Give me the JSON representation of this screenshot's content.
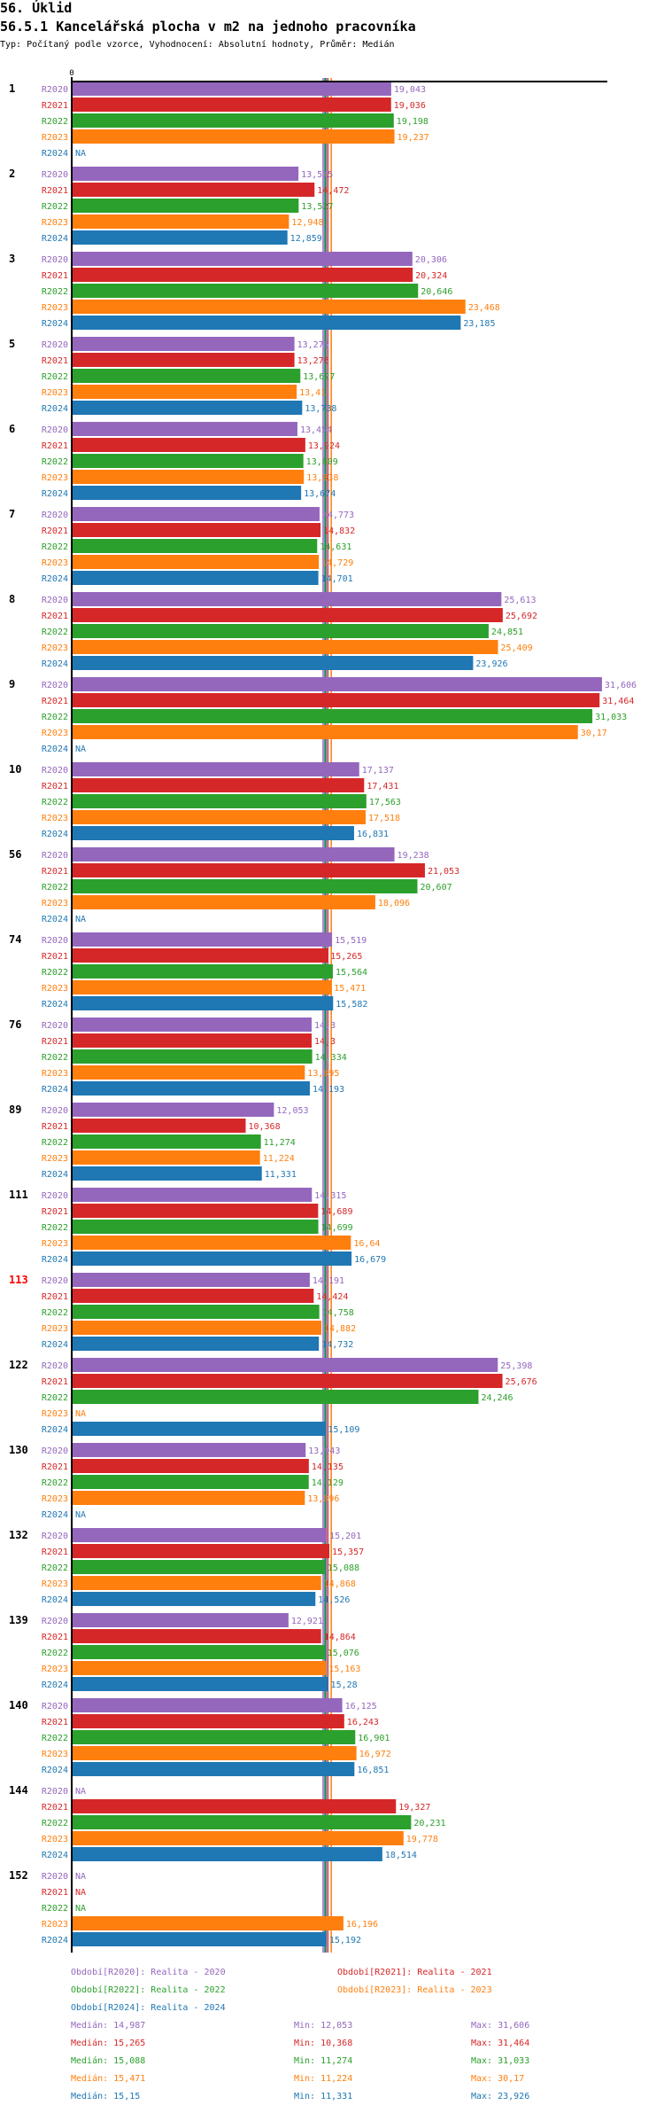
{
  "header": {
    "section": "56. Úklid",
    "title": "56.5.1 Kancelářská plocha v m2 na jednoho pracovníka",
    "subtitle": "Typ: Počítaný podle vzorce, Vyhodnocení: Absolutní hodnoty, Průměr: Medián"
  },
  "chart_data": {
    "type": "bar",
    "orientation": "horizontal",
    "title": "56.5.1 Kancelářská plocha v m2 na jednoho pracovníka",
    "xlabel": "",
    "ylabel": "",
    "x_tick_labels": [
      "0"
    ],
    "xlim": [
      0,
      32
    ],
    "grid": false,
    "decimal_separator": ",",
    "na_label": "NA",
    "series": [
      {
        "name": "R2020",
        "color": "#9467bd",
        "legend": "Období[R2020]: Realita - 2020"
      },
      {
        "name": "R2021",
        "color": "#d62728",
        "legend": "Období[R2021]: Realita - 2021"
      },
      {
        "name": "R2022",
        "color": "#2ca02c",
        "legend": "Období[R2022]: Realita - 2022"
      },
      {
        "name": "R2023",
        "color": "#ff7f0e",
        "legend": "Období[R2023]: Realita - 2023"
      },
      {
        "name": "R2024",
        "color": "#1f77b4",
        "legend": "Období[R2024]: Realita - 2024"
      }
    ],
    "groups": [
      {
        "label": "1",
        "highlight": false,
        "values": [
          19.043,
          19.036,
          19.198,
          19.237,
          null
        ]
      },
      {
        "label": "2",
        "highlight": false,
        "values": [
          13.515,
          14.472,
          13.527,
          12.948,
          12.859
        ]
      },
      {
        "label": "3",
        "highlight": false,
        "values": [
          20.306,
          20.324,
          20.646,
          23.468,
          23.185
        ]
      },
      {
        "label": "5",
        "highlight": false,
        "values": [
          13.276,
          13.276,
          13.627,
          13.41,
          13.738
        ]
      },
      {
        "label": "6",
        "highlight": false,
        "values": [
          13.454,
          13.924,
          13.809,
          13.838,
          13.674
        ]
      },
      {
        "label": "7",
        "highlight": false,
        "values": [
          14.773,
          14.832,
          14.631,
          14.729,
          14.701
        ]
      },
      {
        "label": "8",
        "highlight": false,
        "values": [
          25.613,
          25.692,
          24.851,
          25.409,
          23.926
        ]
      },
      {
        "label": "9",
        "highlight": false,
        "values": [
          31.606,
          31.464,
          31.033,
          30.17,
          null
        ]
      },
      {
        "label": "10",
        "highlight": false,
        "values": [
          17.137,
          17.431,
          17.563,
          17.518,
          16.831
        ]
      },
      {
        "label": "56",
        "highlight": false,
        "values": [
          19.238,
          21.053,
          20.607,
          18.096,
          null
        ]
      },
      {
        "label": "74",
        "highlight": false,
        "values": [
          15.519,
          15.265,
          15.564,
          15.471,
          15.582
        ]
      },
      {
        "label": "76",
        "highlight": false,
        "values": [
          14.3,
          14.3,
          14.334,
          13.895,
          14.193
        ]
      },
      {
        "label": "89",
        "highlight": false,
        "values": [
          12.053,
          10.368,
          11.274,
          11.224,
          11.331
        ]
      },
      {
        "label": "111",
        "highlight": false,
        "values": [
          14.315,
          14.689,
          14.699,
          16.64,
          16.679
        ]
      },
      {
        "label": "113",
        "highlight": true,
        "values": [
          14.191,
          14.424,
          14.758,
          14.882,
          14.732
        ]
      },
      {
        "label": "122",
        "highlight": false,
        "values": [
          25.398,
          25.676,
          24.246,
          null,
          15.109
        ]
      },
      {
        "label": "130",
        "highlight": false,
        "values": [
          13.943,
          14.135,
          14.129,
          13.896,
          null
        ]
      },
      {
        "label": "132",
        "highlight": false,
        "values": [
          15.201,
          15.357,
          15.088,
          14.868,
          14.526
        ]
      },
      {
        "label": "139",
        "highlight": false,
        "values": [
          12.921,
          14.864,
          15.076,
          15.163,
          15.28
        ]
      },
      {
        "label": "140",
        "highlight": false,
        "values": [
          16.125,
          16.243,
          16.901,
          16.972,
          16.851
        ]
      },
      {
        "label": "144",
        "highlight": false,
        "values": [
          null,
          19.327,
          20.231,
          19.778,
          18.514
        ]
      },
      {
        "label": "152",
        "highlight": false,
        "values": [
          null,
          null,
          null,
          16.196,
          15.192
        ]
      }
    ],
    "medians": [
      14.987,
      15.265,
      15.088,
      15.471,
      15.15
    ],
    "stats": [
      {
        "median": "Medián: 14,987",
        "min": "Min: 12,053",
        "max": "Max: 31,606"
      },
      {
        "median": "Medián: 15,265",
        "min": "Min: 10,368",
        "max": "Max: 31,464"
      },
      {
        "median": "Medián: 15,088",
        "min": "Min: 11,274",
        "max": "Max: 31,033"
      },
      {
        "median": "Medián: 15,471",
        "min": "Min: 11,224",
        "max": "Max: 30,17"
      },
      {
        "median": "Medián: 15,15",
        "min": "Min: 11,331",
        "max": "Max: 23,926"
      }
    ],
    "legend_position": "bottom"
  }
}
